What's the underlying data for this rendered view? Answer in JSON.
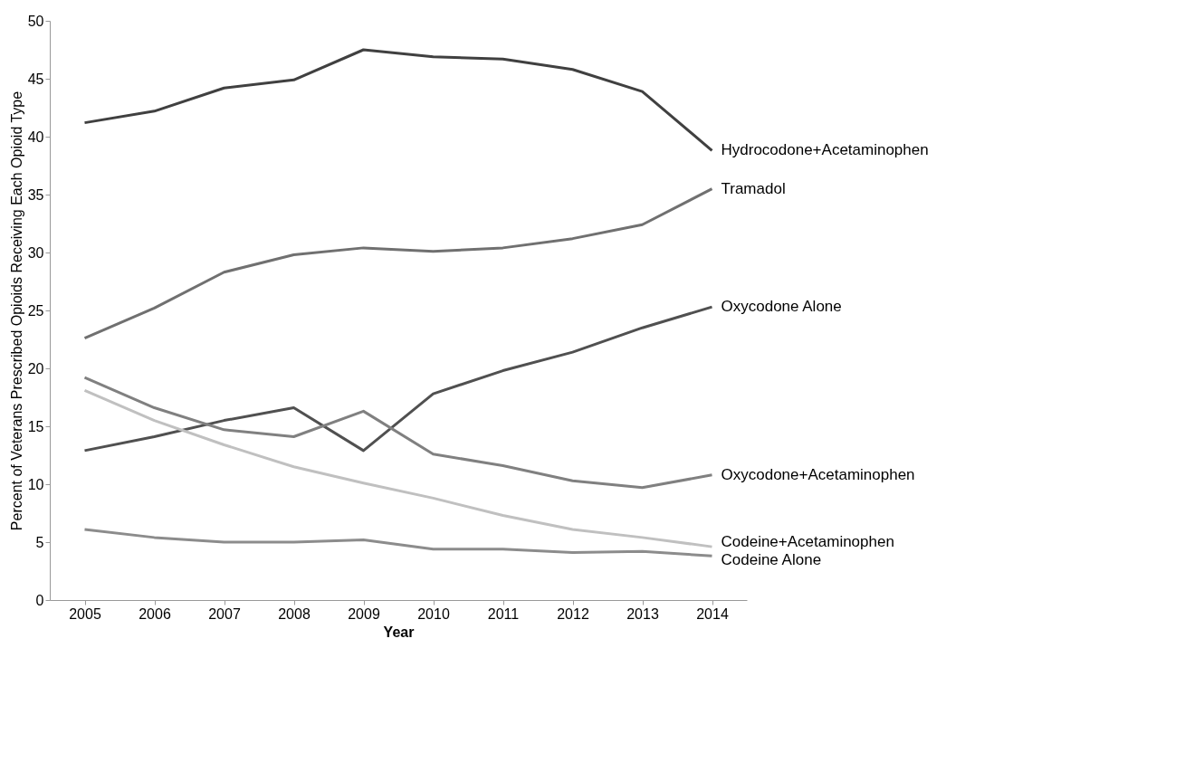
{
  "chart_data": {
    "type": "line",
    "xlabel": "Year",
    "ylabel": "Percent of Veterans Prescribed Opioids Receiving Each Opioid Type",
    "categories": [
      "2005",
      "2006",
      "2007",
      "2008",
      "2009",
      "2010",
      "2011",
      "2012",
      "2013",
      "2014"
    ],
    "ylim": [
      0,
      50
    ],
    "yticks": [
      0,
      5,
      10,
      15,
      20,
      25,
      30,
      35,
      40,
      45,
      50
    ],
    "grid": false,
    "legend": false,
    "marker": "none",
    "line_style": "solid",
    "series": [
      {
        "name": "Hydrocodone+Acetaminophen",
        "color": "#404040",
        "values": [
          41.2,
          42.2,
          44.2,
          44.9,
          47.5,
          46.9,
          46.7,
          45.8,
          43.9,
          38.8
        ]
      },
      {
        "name": "Tramadol",
        "color": "#707070",
        "values": [
          22.6,
          25.2,
          28.3,
          29.8,
          30.4,
          30.1,
          30.4,
          31.2,
          32.4,
          35.5
        ]
      },
      {
        "name": "Oxycodone Alone",
        "color": "#505050",
        "values": [
          12.9,
          14.1,
          15.5,
          16.6,
          12.9,
          17.8,
          19.8,
          21.4,
          23.5,
          25.3
        ]
      },
      {
        "name": "Oxycodone+Acetaminophen",
        "color": "#808080",
        "values": [
          19.2,
          16.6,
          14.7,
          14.1,
          16.3,
          12.6,
          11.6,
          10.3,
          9.7,
          10.8
        ]
      },
      {
        "name": "Codeine+Acetaminophen",
        "color": "#c0c0c0",
        "values": [
          18.1,
          15.5,
          13.4,
          11.5,
          10.1,
          8.8,
          7.3,
          6.1,
          5.4,
          4.6
        ]
      },
      {
        "name": "Codeine Alone",
        "color": "#8c8c8c",
        "values": [
          6.1,
          5.4,
          5.0,
          5.0,
          5.2,
          4.4,
          4.4,
          4.1,
          4.2,
          3.8
        ]
      }
    ]
  }
}
